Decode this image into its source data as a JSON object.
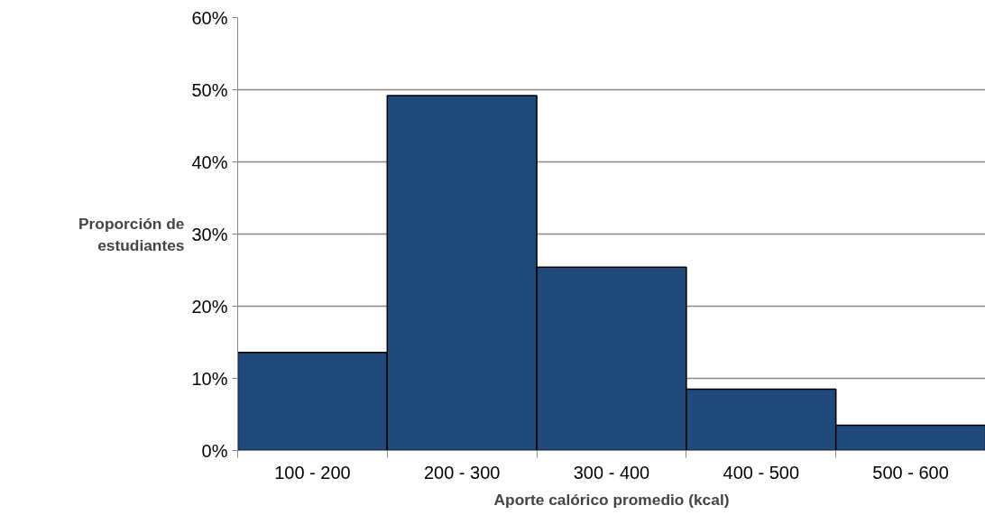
{
  "chart_data": {
    "type": "bar",
    "xlabel": "Aporte calórico promedio (kcal)",
    "ylabel": "Proporción de\nestudiantes",
    "categories": [
      "100 - 200",
      "200 - 300",
      "300 - 400",
      "400 - 500",
      "500 - 600"
    ],
    "values": [
      13.6,
      49.2,
      25.4,
      8.5,
      3.5
    ],
    "color": "#214a7c",
    "ylim": [
      0,
      60
    ],
    "yticks": [
      {
        "value": 0,
        "label": "0%"
      },
      {
        "value": 10,
        "label": "10%"
      },
      {
        "value": 20,
        "label": "20%"
      },
      {
        "value": 30,
        "label": "30%"
      },
      {
        "value": 40,
        "label": "40%"
      },
      {
        "value": 50,
        "label": "50%"
      },
      {
        "value": 60,
        "label": "60%"
      }
    ],
    "grid": "y"
  }
}
